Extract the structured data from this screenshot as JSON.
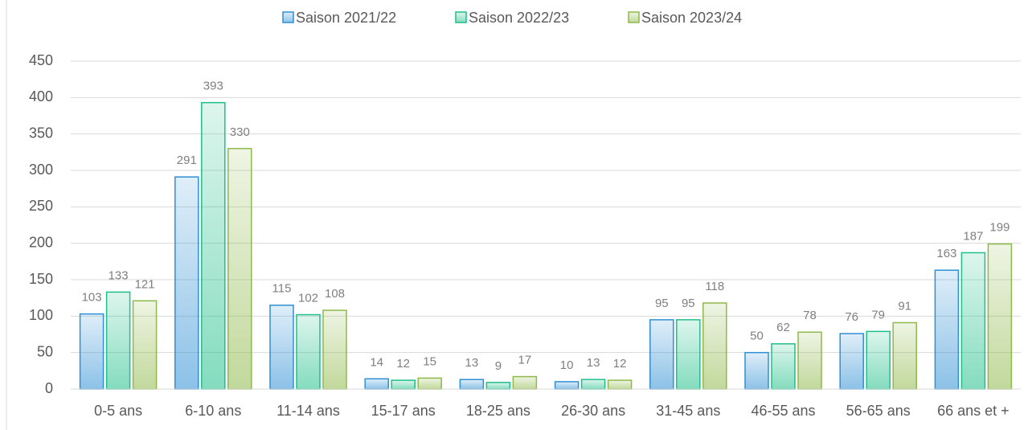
{
  "chart_data": {
    "type": "bar",
    "categories": [
      "0-5 ans",
      "6-10 ans",
      "11-14 ans",
      "15-17 ans",
      "18-25 ans",
      "26-30 ans",
      "31-45 ans",
      "46-55 ans",
      "56-65 ans",
      "66 ans et +"
    ],
    "series": [
      {
        "name": "Saison 2021/22",
        "color": "#2e8fd4",
        "values": [
          103,
          291,
          115,
          14,
          13,
          10,
          95,
          50,
          76,
          163
        ]
      },
      {
        "name": "Saison 2022/23",
        "color": "#1fbf8a",
        "values": [
          133,
          393,
          102,
          12,
          9,
          13,
          95,
          62,
          79,
          187
        ]
      },
      {
        "name": "Saison 2023/24",
        "color": "#8fb94a",
        "values": [
          121,
          330,
          108,
          15,
          17,
          12,
          118,
          78,
          91,
          199
        ]
      }
    ],
    "ylim": [
      0,
      450
    ],
    "yticks": [
      0,
      50,
      100,
      150,
      200,
      250,
      300,
      350,
      400,
      450
    ],
    "grid": true,
    "legend": "top"
  }
}
